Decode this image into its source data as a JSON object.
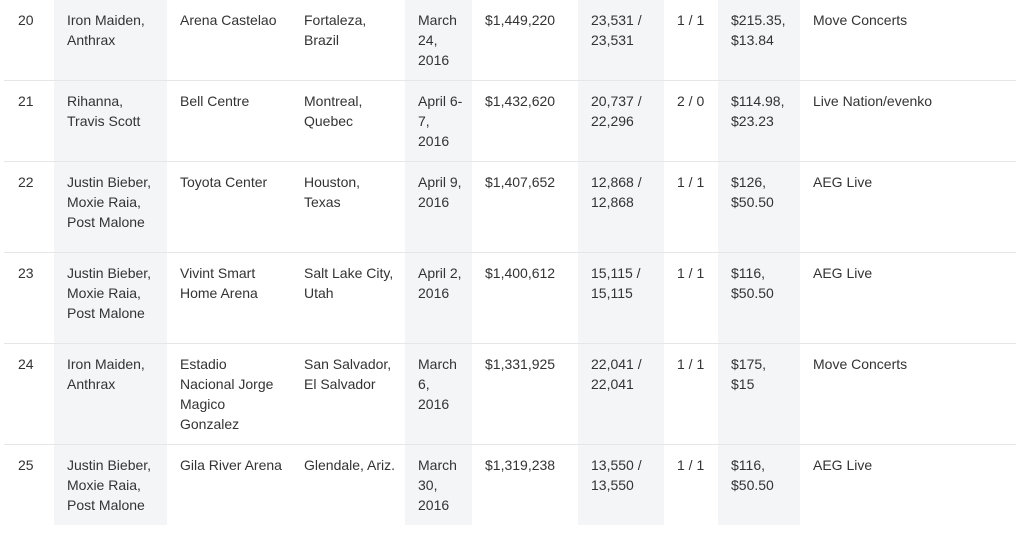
{
  "rows": [
    {
      "rank": "20",
      "artist": "Iron Maiden, Anthrax",
      "venue": "Arena Castelao",
      "city": "Fortaleza, Brazil",
      "date": "March 24, 2016",
      "gross": "$1,449,220",
      "attendance": "23,531 / 23,531",
      "shows": "1 / 1",
      "prices": "$215.35, $13.84",
      "promoter": "Move Concerts"
    },
    {
      "rank": "21",
      "artist": "Rihanna, Travis Scott",
      "venue": "Bell Centre",
      "city": "Montreal, Quebec",
      "date": "April 6-7, 2016",
      "gross": "$1,432,620",
      "attendance": "20,737 / 22,296",
      "shows": "2 / 0",
      "prices": "$114.98, $23.23",
      "promoter": "Live Nation/evenko"
    },
    {
      "rank": "22",
      "artist": "Justin Bieber, Moxie Raia, Post Malone",
      "venue": "Toyota Center",
      "city": "Houston, Texas",
      "date": "April 9, 2016",
      "gross": "$1,407,652",
      "attendance": "12,868 / 12,868",
      "shows": "1 / 1",
      "prices": "$126, $50.50",
      "promoter": "AEG Live"
    },
    {
      "rank": "23",
      "artist": "Justin Bieber, Moxie Raia, Post Malone",
      "venue": "Vivint Smart Home Arena",
      "city": "Salt Lake City, Utah",
      "date": "April 2, 2016",
      "gross": "$1,400,612",
      "attendance": "15,115 / 15,115",
      "shows": "1 / 1",
      "prices": "$116, $50.50",
      "promoter": "AEG Live"
    },
    {
      "rank": "24",
      "artist": "Iron Maiden, Anthrax",
      "venue": "Estadio Nacional Jorge Magico Gonzalez",
      "city": "San Salvador, El Salvador",
      "date": "March 6, 2016",
      "gross": "$1,331,925",
      "attendance": "22,041 / 22,041",
      "shows": "1 / 1",
      "prices": "$175, $15",
      "promoter": "Move Concerts"
    },
    {
      "rank": "25",
      "artist": "Justin Bieber, Moxie Raia, Post Malone",
      "venue": "Gila River Arena",
      "city": "Glendale, Ariz.",
      "date": "March 30, 2016",
      "gross": "$1,319,238",
      "attendance": "13,550 / 13,550",
      "shows": "1 / 1",
      "prices": "$116, $50.50",
      "promoter": "AEG Live"
    }
  ]
}
